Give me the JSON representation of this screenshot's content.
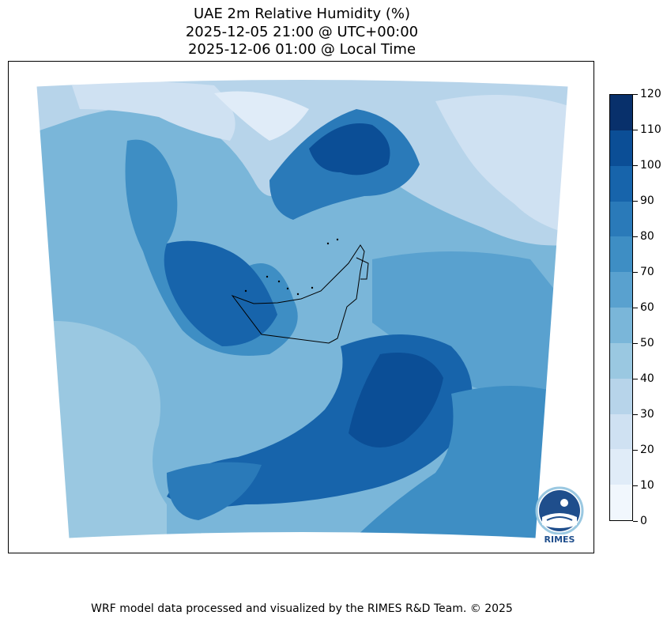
{
  "title": {
    "line1": "UAE 2m Relative Humidity (%)",
    "line2": "2025-12-05 21:00 @ UTC+00:00",
    "line3": "2025-12-06 01:00 @ Local Time"
  },
  "colorbar": {
    "ticks": [
      "0",
      "10",
      "20",
      "30",
      "40",
      "50",
      "60",
      "70",
      "80",
      "90",
      "100",
      "110",
      "120"
    ],
    "levels": [
      0,
      10,
      20,
      30,
      40,
      50,
      60,
      70,
      80,
      90,
      100,
      110,
      120
    ],
    "colors": [
      "#f1f7fd",
      "#e0ecf8",
      "#cfe1f2",
      "#b7d4ea",
      "#9ac8e1",
      "#7ab6d9",
      "#59a1cf",
      "#3e8ec4",
      "#2a7ab9",
      "#1764ab",
      "#0b4e96",
      "#08306b"
    ]
  },
  "map": {
    "region": "UAE",
    "variable": "2m Relative Humidity"
  },
  "logo": {
    "text": "RIMES"
  },
  "footer": "WRF model data processed and visualized by the RIMES R&D Team. © 2025"
}
